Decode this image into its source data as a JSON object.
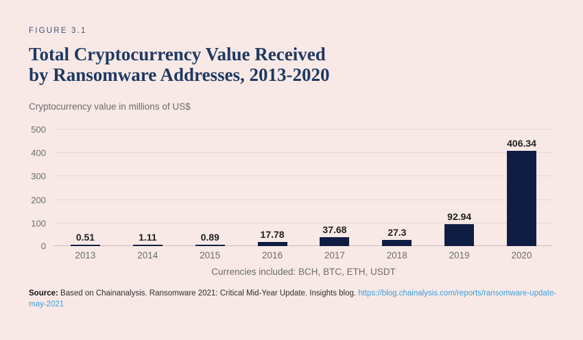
{
  "figure_label": "FIGURE 3.1",
  "title_line1": "Total Cryptocurrency Value Received",
  "title_line2": "by Ransomware Addresses, 2013-2020",
  "subtitle": "Cryptocurrency value in millions of US$",
  "chart_data": {
    "type": "bar",
    "title": "Total Cryptocurrency Value Received by Ransomware Addresses, 2013-2020",
    "categories": [
      "2013",
      "2014",
      "2015",
      "2016",
      "2017",
      "2018",
      "2019",
      "2020"
    ],
    "values": [
      0.51,
      1.11,
      0.89,
      17.78,
      37.68,
      27.3,
      92.94,
      406.34
    ],
    "value_labels": [
      "0.51",
      "1.11",
      "0.89",
      "17.78",
      "37.68",
      "27.3",
      "92.94",
      "406.34"
    ],
    "xlabel": "",
    "ylabel": "Cryptocurrency value in millions of US$",
    "ylim": [
      0,
      500
    ],
    "yticks": [
      0,
      100,
      200,
      300,
      400,
      500
    ],
    "grid": true,
    "legend": "none",
    "bar_color": "#0f1d42"
  },
  "footnote": "Currencies included: BCH, BTC, ETH, USDT",
  "source": {
    "label": "Source:",
    "text": " Based on Chainanalysis. Ransomware 2021: Critical Mid-Year Update. Insights blog. ",
    "link_text": "https://blog.chainalysis.com/reports/ransomware-update-may-2021"
  },
  "colors": {
    "background": "#f8e9e6",
    "bar": "#0f1d42",
    "title_navy": "#1e3a61",
    "figure_label_navy": "#3c5376",
    "muted_text": "#6b6b6b",
    "value_label": "#1f1f1f",
    "gridline": "#e4d8d6",
    "zero_line": "#c8bcba",
    "link_blue": "#3aa0da"
  }
}
